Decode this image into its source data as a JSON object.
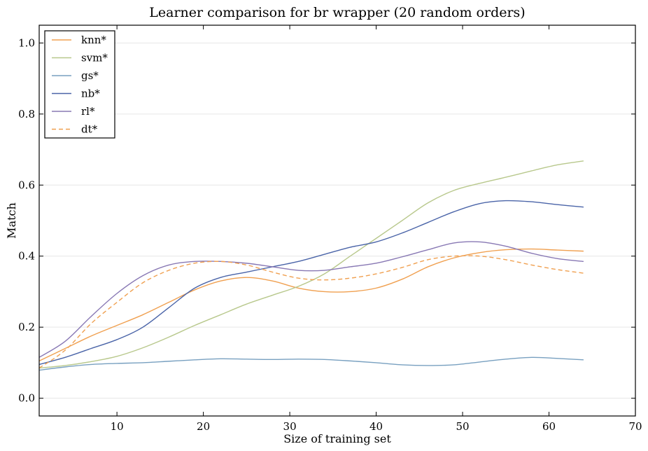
{
  "chart_data": {
    "type": "line",
    "title": "Learner comparison for br wrapper (20 random orders)",
    "xlabel": "Size of training set",
    "ylabel": "Match",
    "xlim": [
      1,
      70
    ],
    "ylim": [
      -0.05,
      1.05
    ],
    "xticks": [
      10,
      20,
      30,
      40,
      50,
      60,
      70
    ],
    "yticks": [
      0.0,
      0.2,
      0.4,
      0.6,
      0.8,
      1.0
    ],
    "xtick_labels": [
      "10",
      "20",
      "30",
      "40",
      "50",
      "60",
      "70"
    ],
    "ytick_labels": [
      "0.0",
      "0.2",
      "0.4",
      "0.6",
      "0.8",
      "1.0"
    ],
    "grid": "horizontal",
    "legend_position": "top-left",
    "x": [
      1,
      4,
      7,
      10,
      13,
      16,
      19,
      22,
      25,
      28,
      31,
      34,
      37,
      40,
      43,
      46,
      49,
      52,
      55,
      58,
      61,
      64
    ],
    "series": [
      {
        "name": "knn*",
        "color": "#f0a050",
        "dash": "solid",
        "values": [
          0.105,
          0.14,
          0.175,
          0.205,
          0.235,
          0.27,
          0.305,
          0.33,
          0.34,
          0.33,
          0.31,
          0.3,
          0.3,
          0.31,
          0.335,
          0.37,
          0.395,
          0.41,
          0.418,
          0.42,
          0.417,
          0.414
        ]
      },
      {
        "name": "svm*",
        "color": "#b8c88c",
        "dash": "solid",
        "values": [
          0.085,
          0.092,
          0.103,
          0.118,
          0.142,
          0.172,
          0.205,
          0.235,
          0.265,
          0.29,
          0.315,
          0.35,
          0.4,
          0.45,
          0.5,
          0.55,
          0.585,
          0.605,
          0.622,
          0.64,
          0.657,
          0.668
        ]
      },
      {
        "name": "gs*",
        "color": "#78a0c0",
        "dash": "solid",
        "values": [
          0.079,
          0.088,
          0.095,
          0.098,
          0.1,
          0.104,
          0.108,
          0.111,
          0.11,
          0.109,
          0.11,
          0.109,
          0.105,
          0.1,
          0.094,
          0.092,
          0.094,
          0.102,
          0.11,
          0.115,
          0.112,
          0.108
        ]
      },
      {
        "name": "nb*",
        "color": "#4a64a8",
        "dash": "solid",
        "values": [
          0.095,
          0.115,
          0.14,
          0.165,
          0.2,
          0.255,
          0.31,
          0.34,
          0.355,
          0.37,
          0.385,
          0.405,
          0.425,
          0.44,
          0.465,
          0.495,
          0.525,
          0.548,
          0.556,
          0.553,
          0.545,
          0.538
        ]
      },
      {
        "name": "rl*",
        "color": "#8878b4",
        "dash": "solid",
        "values": [
          0.115,
          0.16,
          0.23,
          0.295,
          0.345,
          0.375,
          0.385,
          0.385,
          0.38,
          0.37,
          0.36,
          0.36,
          0.37,
          0.38,
          0.398,
          0.418,
          0.437,
          0.44,
          0.428,
          0.408,
          0.393,
          0.385
        ]
      },
      {
        "name": "dt*",
        "color": "#f0a050",
        "dash": "dashed",
        "values": [
          0.085,
          0.135,
          0.21,
          0.27,
          0.325,
          0.36,
          0.38,
          0.385,
          0.375,
          0.355,
          0.338,
          0.333,
          0.338,
          0.35,
          0.368,
          0.39,
          0.4,
          0.4,
          0.39,
          0.375,
          0.362,
          0.352
        ]
      }
    ]
  }
}
